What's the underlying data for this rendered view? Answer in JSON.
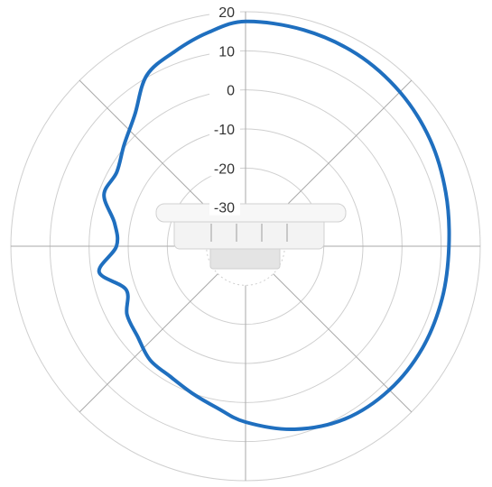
{
  "chart_data": {
    "type": "polar",
    "title": "",
    "radial_unit": "",
    "r_range": [
      -40,
      20
    ],
    "ticks": [
      20,
      10,
      0,
      -10,
      -20,
      -30
    ],
    "tick_labels": [
      "20",
      "10",
      "0",
      "-10",
      "-20",
      "-30"
    ],
    "spoke_angles_deg": [
      0,
      45,
      90,
      135,
      180,
      225,
      270,
      315
    ],
    "grid": true,
    "series": [
      {
        "color": "#1f6fbf",
        "angles_deg": [
          0,
          15,
          30,
          45,
          60,
          75,
          90,
          105,
          120,
          135,
          150,
          165,
          180,
          190,
          200,
          210,
          220,
          230,
          240,
          250,
          260,
          270,
          280,
          290,
          300,
          310,
          320,
          330,
          340,
          350
        ],
        "values": [
          17.5,
          17.3,
          16.8,
          15.8,
          14.5,
          13.0,
          12.0,
          12.0,
          12.2,
          12.0,
          11.0,
          8.5,
          5.0,
          2.0,
          0.0,
          -1.5,
          -2.0,
          -4.0,
          -5.0,
          -7.5,
          -2.0,
          -7.0,
          -6.0,
          -1.5,
          -2.0,
          0.5,
          4.0,
          10.5,
          13.0,
          15.5
        ]
      }
    ]
  },
  "device": {
    "color": "#f0f0f0"
  }
}
